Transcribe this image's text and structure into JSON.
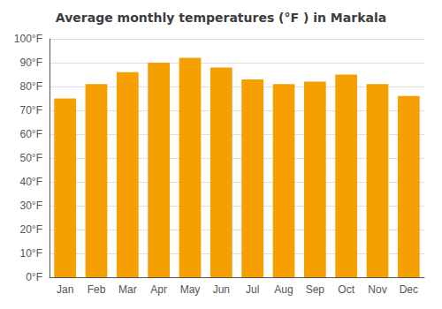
{
  "chart_data": {
    "type": "bar",
    "title": "Average monthly temperatures (°F ) in Markala",
    "categories": [
      "Jan",
      "Feb",
      "Mar",
      "Apr",
      "May",
      "Jun",
      "Jul",
      "Aug",
      "Sep",
      "Oct",
      "Nov",
      "Dec"
    ],
    "values": [
      75,
      81,
      86,
      90,
      92,
      88,
      83,
      81,
      82,
      85,
      81,
      76
    ],
    "color": "#F5A000",
    "ylim": [
      0,
      100
    ],
    "yticks": [
      {
        "value": 0,
        "label": "0°F"
      },
      {
        "value": 10,
        "label": "10°F"
      },
      {
        "value": 20,
        "label": "20°F"
      },
      {
        "value": 30,
        "label": "30°F"
      },
      {
        "value": 40,
        "label": "40°F"
      },
      {
        "value": 50,
        "label": "50°F"
      },
      {
        "value": 60,
        "label": "60°F"
      },
      {
        "value": 70,
        "label": "70°F"
      },
      {
        "value": 80,
        "label": "80°F"
      },
      {
        "value": 90,
        "label": "90°F"
      },
      {
        "value": 100,
        "label": "100°F"
      }
    ],
    "grid": true
  }
}
